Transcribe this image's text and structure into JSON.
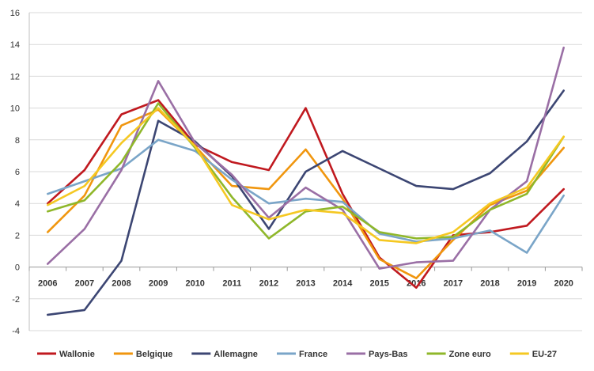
{
  "chart_data": {
    "type": "line",
    "title": "",
    "xlabel": "",
    "ylabel": "",
    "x": [
      "2006",
      "2007",
      "2008",
      "2009",
      "2010",
      "2011",
      "2012",
      "2013",
      "2014",
      "2015",
      "2016",
      "2017",
      "2018",
      "2019",
      "2020"
    ],
    "ylim": [
      -4,
      16
    ],
    "yticks": [
      "-4",
      "-2",
      "0",
      "2",
      "4",
      "6",
      "8",
      "10",
      "12",
      "14",
      "16"
    ],
    "grid": "horizontal",
    "legend_position": "bottom",
    "series": [
      {
        "name": "Wallonie",
        "color": "#c0191f",
        "values": [
          4.0,
          6.1,
          9.6,
          10.5,
          7.7,
          6.6,
          6.1,
          10.0,
          4.6,
          0.6,
          -1.3,
          2.0,
          2.2,
          2.6,
          4.9
        ]
      },
      {
        "name": "Belgique",
        "color": "#f0960e",
        "values": [
          2.2,
          4.5,
          8.9,
          9.9,
          7.6,
          5.1,
          4.9,
          7.4,
          4.3,
          0.5,
          -0.7,
          1.7,
          3.9,
          4.8,
          7.5
        ]
      },
      {
        "name": "Allemagne",
        "color": "#3c4673",
        "values": [
          -3.0,
          -2.7,
          0.4,
          9.2,
          7.9,
          5.7,
          2.4,
          6.0,
          7.3,
          6.2,
          5.1,
          4.9,
          5.9,
          7.9,
          11.1
        ]
      },
      {
        "name": "France",
        "color": "#7aa5c8",
        "values": [
          4.6,
          5.4,
          6.2,
          8.0,
          7.3,
          5.5,
          4.0,
          4.3,
          4.1,
          2.1,
          1.6,
          1.8,
          2.3,
          0.9,
          4.5
        ]
      },
      {
        "name": "Pays-Bas",
        "color": "#9a6fa5",
        "values": [
          0.2,
          2.4,
          6.1,
          11.7,
          7.8,
          5.8,
          3.1,
          5.0,
          3.6,
          -0.1,
          0.3,
          0.4,
          3.6,
          5.4,
          13.8
        ]
      },
      {
        "name": "Zone euro",
        "color": "#8fb72a",
        "values": [
          3.5,
          4.2,
          6.6,
          10.3,
          7.5,
          4.4,
          1.8,
          3.5,
          3.8,
          2.2,
          1.8,
          1.9,
          3.6,
          4.6,
          8.2
        ]
      },
      {
        "name": "EU-27",
        "color": "#f5c822",
        "values": [
          3.9,
          5.1,
          7.8,
          10.0,
          7.6,
          3.9,
          3.0,
          3.6,
          3.4,
          1.7,
          1.5,
          2.2,
          4.0,
          5.0,
          8.2
        ]
      }
    ]
  }
}
